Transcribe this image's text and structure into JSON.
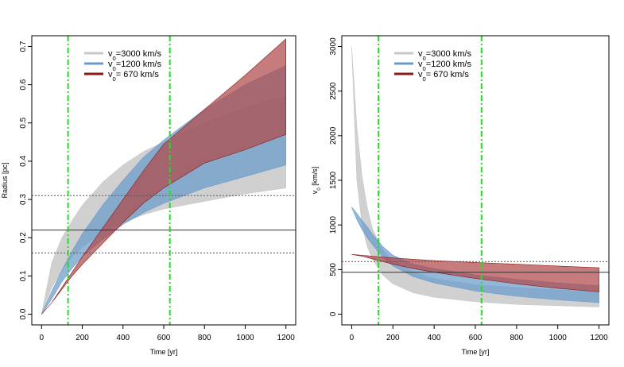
{
  "colors": {
    "v3000": "#c8c8c8",
    "v1200": "#6a9bcb",
    "v670": "#b04a4a",
    "v670_line": "#8b1a1a",
    "guide_green": "#22dd22",
    "ref_line": "#333333",
    "ref_dotted": "#555555"
  },
  "chart_data": [
    {
      "type": "area",
      "xlabel": "Time [yr]",
      "ylabel": "Radius [pc]",
      "xlim": [
        0,
        1200
      ],
      "ylim": [
        0,
        0.7
      ],
      "xticks": [
        0,
        200,
        400,
        600,
        800,
        1000,
        1200
      ],
      "yticks": [
        0.0,
        0.1,
        0.2,
        0.3,
        0.4,
        0.5,
        0.6,
        0.7
      ],
      "ytick_labels": [
        "0.0",
        "0.1",
        "0.2",
        "0.3",
        "0.4",
        "0.5",
        "0.6",
        "0.7"
      ],
      "legend": {
        "placement": "top-left",
        "entries": [
          "v0=3000 km/s",
          "v0=1200 km/s",
          "v0= 670 km/s"
        ]
      },
      "x": [
        0,
        50,
        100,
        150,
        200,
        300,
        400,
        500,
        600,
        800,
        1000,
        1200
      ],
      "series": [
        {
          "name": "v0=3000 km/s",
          "color_key": "v3000",
          "upper": [
            0,
            0.135,
            0.2,
            0.245,
            0.285,
            0.345,
            0.39,
            0.425,
            0.45,
            0.5,
            0.54,
            0.57
          ],
          "lower": [
            0,
            0.07,
            0.115,
            0.15,
            0.175,
            0.215,
            0.24,
            0.26,
            0.275,
            0.295,
            0.315,
            0.33
          ]
        },
        {
          "name": "v0=1200 km/s",
          "color_key": "v1200",
          "upper": [
            0,
            0.06,
            0.115,
            0.165,
            0.21,
            0.285,
            0.35,
            0.41,
            0.455,
            0.535,
            0.6,
            0.65
          ],
          "lower": [
            0,
            0.04,
            0.085,
            0.12,
            0.15,
            0.195,
            0.235,
            0.265,
            0.29,
            0.33,
            0.36,
            0.39
          ]
        },
        {
          "name": "v0= 670 km/s",
          "color_key": "v670",
          "upper": [
            0,
            0.03,
            0.07,
            0.11,
            0.15,
            0.225,
            0.3,
            0.375,
            0.445,
            0.535,
            0.625,
            0.72
          ],
          "lower": [
            0,
            0.03,
            0.065,
            0.1,
            0.13,
            0.185,
            0.24,
            0.29,
            0.33,
            0.395,
            0.43,
            0.47
          ]
        }
      ],
      "vlines": [
        130,
        630
      ],
      "hline_solid": 0.22,
      "hlines_dotted": [
        0.31,
        0.16
      ]
    },
    {
      "type": "area",
      "xlabel": "Time [yr]",
      "ylabel": "v0 [km/s]",
      "xlim": [
        0,
        1200
      ],
      "ylim": [
        0,
        3000
      ],
      "xticks": [
        0,
        200,
        400,
        600,
        800,
        1000,
        1200
      ],
      "yticks": [
        0,
        500,
        1000,
        1500,
        2000,
        2500,
        3000
      ],
      "ytick_labels": [
        "0",
        "500",
        "1000",
        "1500",
        "2000",
        "2500",
        "3000"
      ],
      "legend": {
        "placement": "top-left",
        "entries": [
          "v0=3000 km/s",
          "v0=1200 km/s",
          "v0= 670 km/s"
        ]
      },
      "x": [
        0,
        25,
        50,
        75,
        100,
        150,
        200,
        300,
        400,
        600,
        800,
        1000,
        1200
      ],
      "series": [
        {
          "name": "v0=3000 km/s",
          "color_key": "v3000",
          "upper": [
            3000,
            2100,
            1550,
            1200,
            960,
            720,
            600,
            470,
            400,
            330,
            300,
            270,
            250
          ],
          "lower": [
            3000,
            1500,
            1000,
            760,
            620,
            440,
            340,
            240,
            190,
            140,
            110,
            95,
            80
          ]
        },
        {
          "name": "v0=1200 km/s",
          "color_key": "v1200",
          "upper": [
            1200,
            1130,
            1050,
            980,
            900,
            760,
            660,
            560,
            510,
            440,
            390,
            350,
            320
          ],
          "lower": [
            1200,
            1060,
            950,
            860,
            780,
            640,
            540,
            420,
            350,
            260,
            200,
            160,
            130
          ]
        },
        {
          "name": "v0= 670 km/s",
          "color_key": "v670",
          "upper": [
            670,
            665,
            660,
            655,
            650,
            640,
            630,
            615,
            600,
            580,
            560,
            540,
            520
          ],
          "lower": [
            670,
            660,
            650,
            635,
            620,
            590,
            560,
            510,
            470,
            400,
            340,
            290,
            250
          ]
        }
      ],
      "vlines": [
        130,
        630
      ],
      "hline_solid": 470,
      "hlines_dotted": [
        590
      ]
    }
  ]
}
